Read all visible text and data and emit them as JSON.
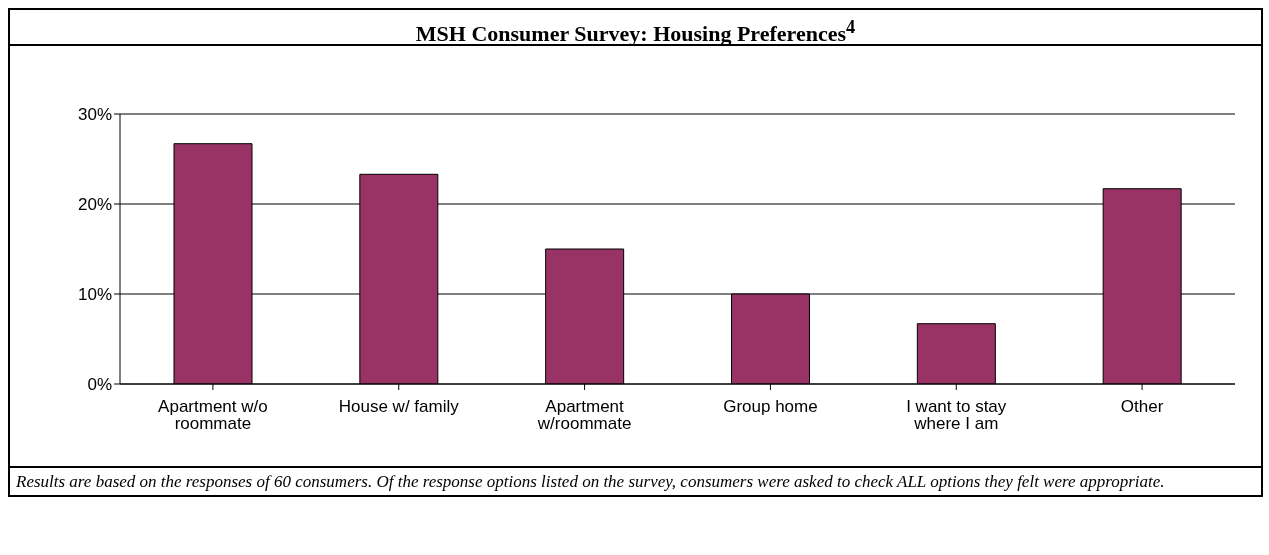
{
  "chart_data": {
    "type": "bar",
    "title": "MSH Consumer Survey: Housing Preferences$^{4}$",
    "categories": [
      "Apartment w/o roommate",
      "House w/ family",
      "Apartment w/roommate",
      "Group home",
      "I want to stay where I am",
      "Other"
    ],
    "values": [
      26.7,
      23.3,
      15,
      10,
      6.7,
      21.7
    ],
    "color": "#993366",
    "ylim": [
      0,
      30
    ],
    "yticks": [
      {
        "value": 0,
        "label": "0%"
      },
      {
        "value": 10,
        "label": "10%"
      },
      {
        "value": 20,
        "label": "20%"
      },
      {
        "value": 30,
        "label": "30%"
      }
    ],
    "grid": "y",
    "legend": false,
    "annotations": [
      "Results are based on the responses of 60 consumers.  Of the response options listed on the survey, consumers were asked to check ALL options they felt were appropriate."
    ]
  }
}
